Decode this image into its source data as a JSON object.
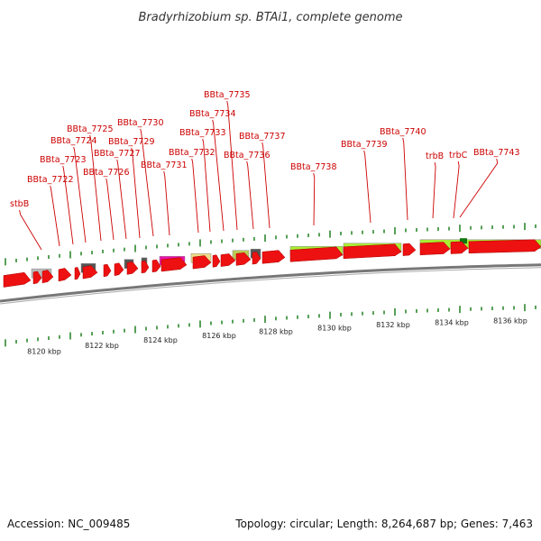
{
  "title": "Bradyrhizobium sp. BTAi1, complete genome",
  "footer": {
    "accession": "Accession: NC_009485",
    "topology": "Topology: circular; Length: 8,264,687 bp; Genes: 7,463"
  },
  "colors": {
    "gene_arrow": "#ee1111",
    "backbone": "#777777",
    "green_feature": "#aaee33",
    "gray_feature": "#bbbbbb",
    "dark_feature": "#555555",
    "magenta_feature": "#ee11aa",
    "khaki_feature": "#eedd88",
    "tick": "#117711",
    "label": "#cc0000"
  },
  "axis_labels": [
    "8120 kbp",
    "8122 kbp",
    "8124 kbp",
    "8126 kbp",
    "8128 kbp",
    "8130 kbp",
    "8132 kbp",
    "8134 kbp",
    "8136 kbp"
  ],
  "gene_labels": [
    "stbB",
    "BBta_7722",
    "BBta_7723",
    "BBta_7724",
    "BBta_7725",
    "BBta_7726",
    "BBta_7727",
    "BBta_7729",
    "BBta_7730",
    "BBta_7731",
    "BBta_7732",
    "BBta_7733",
    "BBta_7734",
    "BBta_7735",
    "BBta_7736",
    "BBta_7737",
    "BBta_7738",
    "BBta_7739",
    "BBta_7740",
    "trbB",
    "trbC",
    "BBta_7743"
  ]
}
